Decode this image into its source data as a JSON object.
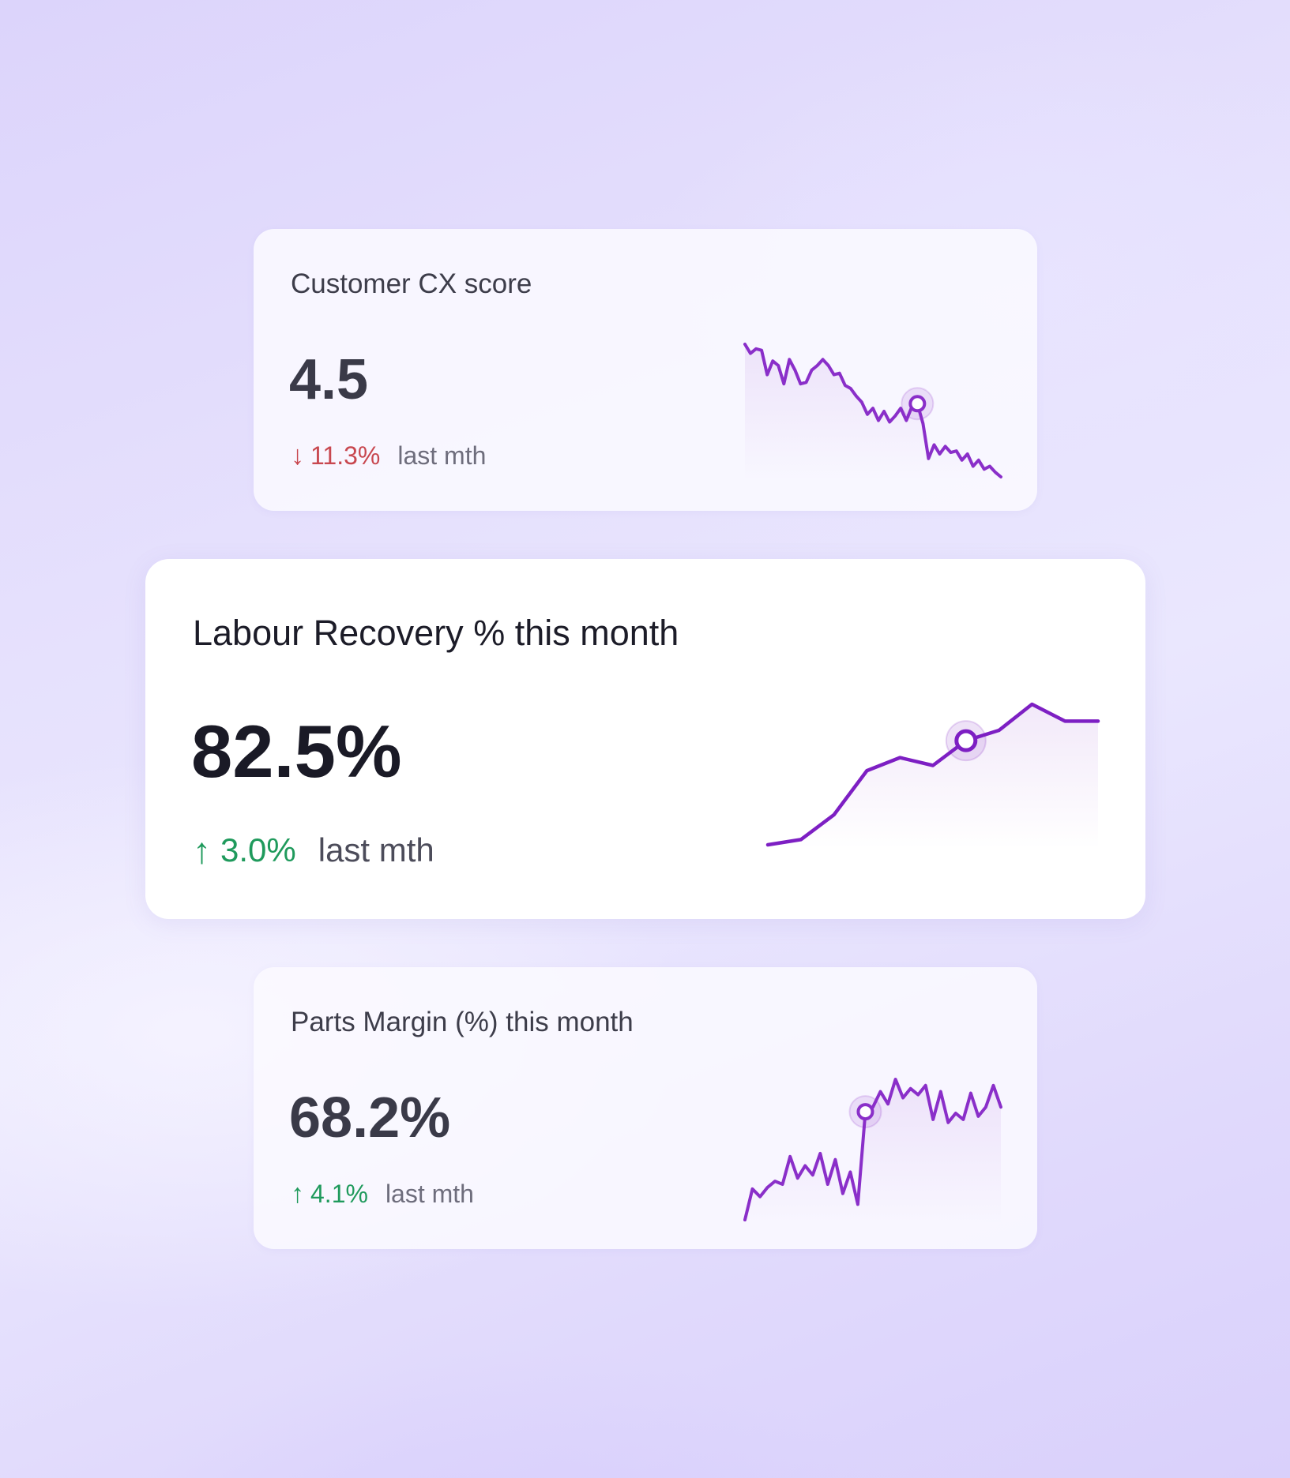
{
  "cards": [
    {
      "id": "cx",
      "title": "Customer CX score",
      "value": "4.5",
      "delta": {
        "direction": "down",
        "arrow": "↓",
        "value": "11.3%",
        "suffix": "last mth"
      },
      "sparkline": {
        "values": [
          92,
          86,
          89,
          88,
          72,
          81,
          78,
          66,
          82,
          75,
          66,
          67,
          75,
          78,
          82,
          78,
          72,
          73,
          65,
          63,
          58,
          54,
          46,
          50,
          42,
          48,
          41,
          45,
          50,
          42,
          51,
          53,
          40,
          17,
          26,
          20,
          25,
          21,
          22,
          16,
          20,
          12,
          16,
          10,
          12,
          8,
          5
        ],
        "highlight_index": 31,
        "line_color": "#8a2fc9"
      }
    },
    {
      "id": "labour",
      "title": "Labour Recovery % this month",
      "value": "82.5%",
      "delta": {
        "direction": "up",
        "arrow": "↑",
        "value": "3.0%",
        "suffix": "last mth"
      },
      "sparkline": {
        "values": [
          5,
          9,
          28,
          62,
          72,
          66,
          85,
          93,
          113,
          100,
          100
        ],
        "highlight_index": 6,
        "line_color": "#7d1fc3"
      }
    },
    {
      "id": "parts",
      "title": "Parts Margin (%) this month",
      "value": "68.2%",
      "delta": {
        "direction": "up",
        "arrow": "↑",
        "value": "4.1%",
        "suffix": "last mth"
      },
      "sparkline": {
        "values": [
          5,
          25,
          20,
          26,
          30,
          28,
          46,
          32,
          40,
          34,
          48,
          28,
          44,
          22,
          36,
          15,
          75,
          78,
          88,
          80,
          96,
          84,
          90,
          86,
          92,
          70,
          88,
          68,
          74,
          70,
          87,
          72,
          78,
          92,
          78
        ],
        "highlight_index": 16,
        "line_color": "#8a2fc9"
      }
    }
  ]
}
